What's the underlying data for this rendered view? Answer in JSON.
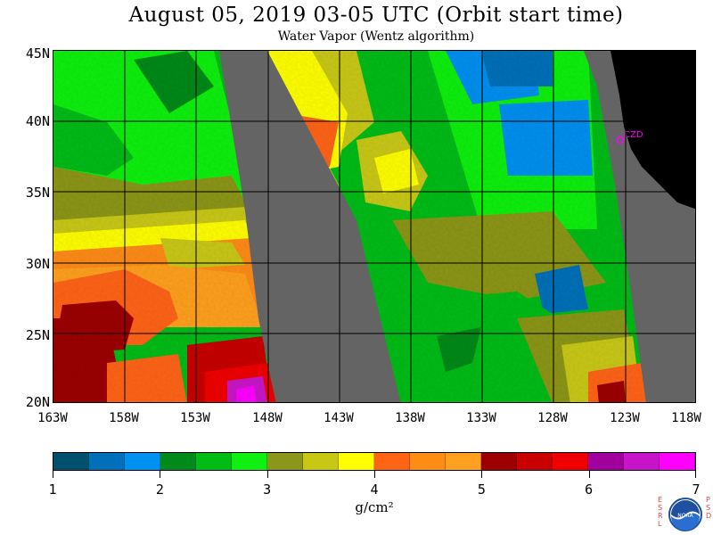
{
  "title": "August 05, 2019  03-05 UTC  (Orbit start time)",
  "subtitle": "Water Vapor (Wentz algorithm)",
  "lat_labels": [
    "45N",
    "40N",
    "35N",
    "30N",
    "25N",
    "20N"
  ],
  "lon_labels": [
    "163W",
    "158W",
    "153W",
    "148W",
    "143W",
    "138W",
    "133W",
    "128W",
    "123W",
    "118W"
  ],
  "station_label": "CZD",
  "colorbar": {
    "labels": [
      "1",
      "2",
      "3",
      "4",
      "5",
      "6",
      "7"
    ],
    "units": "g/cm²",
    "colors": [
      "#00506e",
      "#0070b8",
      "#0090f0",
      "#008a1a",
      "#00bc14",
      "#10f010",
      "#8c961a",
      "#c8c814",
      "#ffff00",
      "#ff6414",
      "#ff8c14",
      "#ffa020",
      "#9c0000",
      "#c80000",
      "#f00000",
      "#a0009c",
      "#c814c8",
      "#ff00ff"
    ]
  },
  "logo": {
    "left_letters": [
      "E",
      "S",
      "R",
      "L"
    ],
    "right_letters": [
      "P",
      "S",
      "D"
    ],
    "center_text": "NOAA"
  },
  "map": {
    "land_color": "#000000",
    "no_data_color": "#646464",
    "grid_color": "#000000"
  }
}
